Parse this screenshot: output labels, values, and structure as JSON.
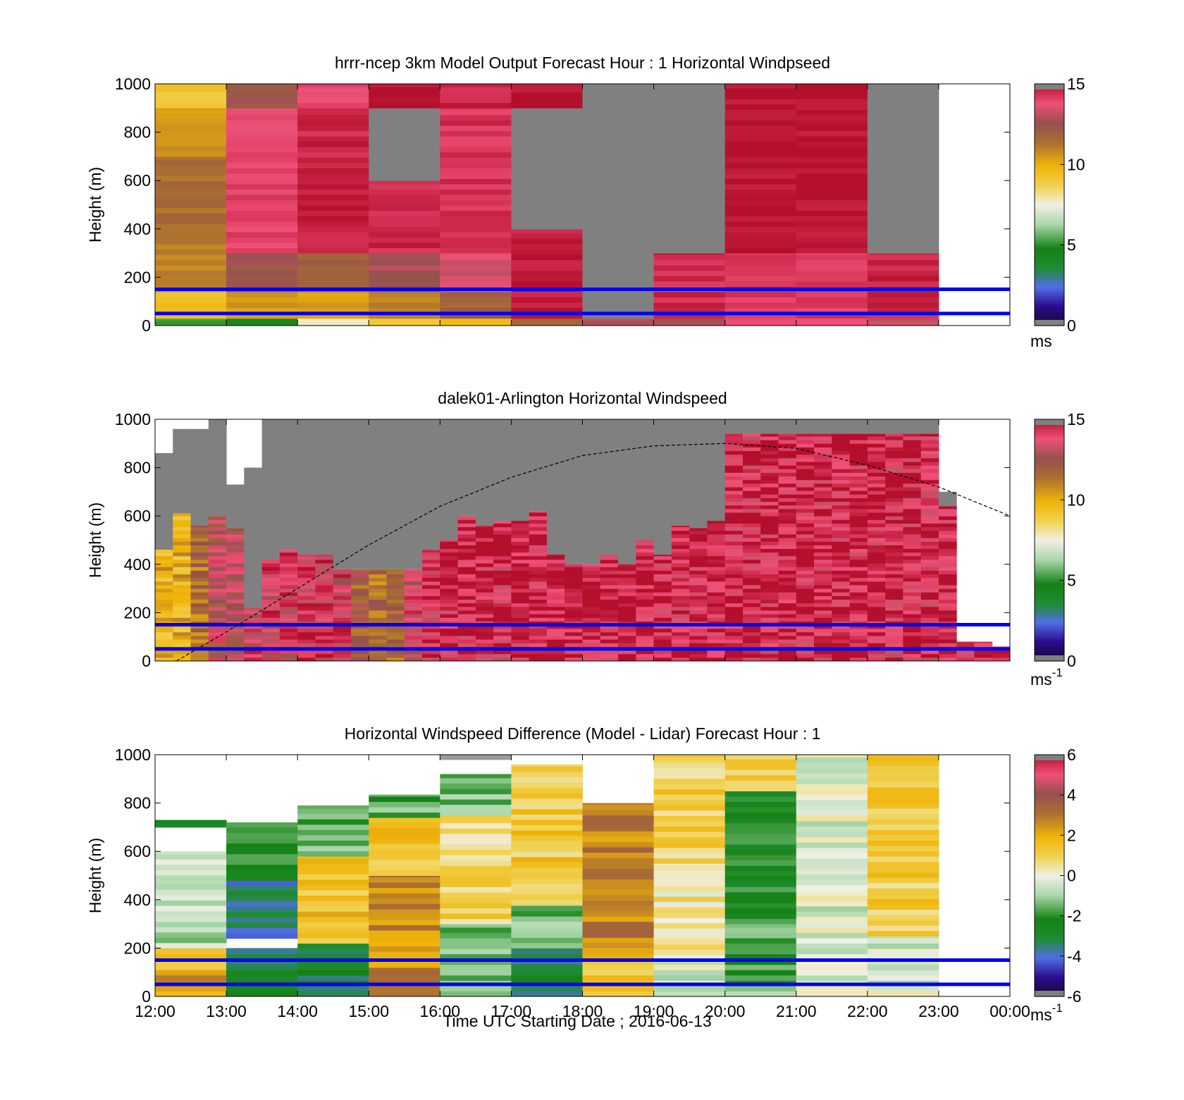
{
  "figure": {
    "xlabel": "Time UTC  Starting Date ; 2016-06-13",
    "x_tick_labels": [
      "12:00",
      "13:00",
      "14:00",
      "15:00",
      "16:00",
      "17:00",
      "18:00",
      "19:00",
      "20:00",
      "21:00",
      "22:00",
      "23:00",
      "00:00"
    ]
  },
  "chart_data": [
    {
      "type": "heatmap",
      "title": "hrrr-ncep 3km Model Output   Forecast Hour : 1 Horizontal Windpseed",
      "xlabel": "",
      "ylabel": "Height (m)",
      "x_range_hours": [
        12,
        24
      ],
      "ylim": [
        0,
        1000
      ],
      "y_ticks": [
        0,
        200,
        400,
        600,
        800,
        1000
      ],
      "colorbar": {
        "range": [
          0,
          15
        ],
        "ticks": [
          0,
          5,
          10,
          15
        ],
        "unit_label": "ms",
        "unit_sup": ""
      },
      "reference_lines_m": [
        50,
        150
      ],
      "line_color": "#0000ee",
      "missing_color": "#808080",
      "columns": [
        {
          "start_hour": 12,
          "cells": [
            {
              "y0": 0,
              "y1": 30,
              "v": 5.5
            },
            {
              "y0": 30,
              "y1": 140,
              "v": 9.5
            },
            {
              "y0": 140,
              "y1": 400,
              "v": 11
            },
            {
              "y0": 400,
              "y1": 700,
              "v": 11.5
            },
            {
              "y0": 700,
              "y1": 900,
              "v": 10.5
            },
            {
              "y0": 900,
              "y1": 1000,
              "v": 9.2
            }
          ]
        },
        {
          "start_hour": 13,
          "cells": [
            {
              "y0": 0,
              "y1": 30,
              "v": 4
            },
            {
              "y0": 30,
              "y1": 140,
              "v": 10.5
            },
            {
              "y0": 140,
              "y1": 300,
              "v": 12.5
            },
            {
              "y0": 300,
              "y1": 900,
              "v": 14
            },
            {
              "y0": 900,
              "y1": 1000,
              "v": 12.5
            }
          ]
        },
        {
          "start_hour": 14,
          "cells": [
            {
              "y0": 0,
              "y1": 30,
              "v": 8
            },
            {
              "y0": 30,
              "y1": 140,
              "v": 10.5
            },
            {
              "y0": 140,
              "y1": 300,
              "v": 12
            },
            {
              "y0": 300,
              "y1": 900,
              "v": 14.6
            },
            {
              "y0": 900,
              "y1": 1000,
              "v": 13.8
            }
          ]
        },
        {
          "start_hour": 15,
          "cells": [
            {
              "y0": 0,
              "y1": 30,
              "v": 9
            },
            {
              "y0": 30,
              "y1": 140,
              "v": 11
            },
            {
              "y0": 140,
              "y1": 300,
              "v": 12.8
            },
            {
              "y0": 300,
              "y1": 600,
              "v": 14.5
            },
            {
              "y0": 600,
              "y1": 900,
              "v": null
            },
            {
              "y0": 900,
              "y1": 1000,
              "v": 15
            }
          ]
        },
        {
          "start_hour": 16,
          "cells": [
            {
              "y0": 0,
              "y1": 30,
              "v": 9.5
            },
            {
              "y0": 30,
              "y1": 140,
              "v": 11.8
            },
            {
              "y0": 140,
              "y1": 300,
              "v": 13.5
            },
            {
              "y0": 300,
              "y1": 900,
              "v": 14.3
            },
            {
              "y0": 900,
              "y1": 1000,
              "v": 14.6
            }
          ]
        },
        {
          "start_hour": 17,
          "cells": [
            {
              "y0": 0,
              "y1": 30,
              "v": 12
            },
            {
              "y0": 30,
              "y1": 400,
              "v": 14.8
            },
            {
              "y0": 400,
              "y1": 900,
              "v": null
            },
            {
              "y0": 900,
              "y1": 1000,
              "v": 15
            }
          ]
        },
        {
          "start_hour": 18,
          "cells": [
            {
              "y0": 0,
              "y1": 30,
              "v": 13
            },
            {
              "y0": 30,
              "y1": 1000,
              "v": null
            }
          ]
        },
        {
          "start_hour": 19,
          "cells": [
            {
              "y0": 0,
              "y1": 30,
              "v": 13
            },
            {
              "y0": 30,
              "y1": 300,
              "v": 14.5
            },
            {
              "y0": 300,
              "y1": 1000,
              "v": null
            }
          ]
        },
        {
          "start_hour": 20,
          "cells": [
            {
              "y0": 0,
              "y1": 30,
              "v": 13.5
            },
            {
              "y0": 30,
              "y1": 300,
              "v": 14.2
            },
            {
              "y0": 300,
              "y1": 1000,
              "v": 15
            }
          ]
        },
        {
          "start_hour": 21,
          "cells": [
            {
              "y0": 0,
              "y1": 30,
              "v": 13.5
            },
            {
              "y0": 30,
              "y1": 300,
              "v": 14.2
            },
            {
              "y0": 300,
              "y1": 1000,
              "v": 15
            }
          ]
        },
        {
          "start_hour": 22,
          "cells": [
            {
              "y0": 0,
              "y1": 30,
              "v": 13
            },
            {
              "y0": 30,
              "y1": 300,
              "v": 14.6
            },
            {
              "y0": 300,
              "y1": 1000,
              "v": null
            }
          ]
        }
      ]
    },
    {
      "type": "heatmap",
      "title": "dalek01-Arlington  Horizontal Windspeed",
      "xlabel": "",
      "ylabel": "Height (m)",
      "x_range_hours": [
        12,
        24
      ],
      "ylim": [
        0,
        1000
      ],
      "y_ticks": [
        0,
        200,
        400,
        600,
        800,
        1000
      ],
      "colorbar": {
        "range": [
          0,
          15
        ],
        "ticks": [
          0,
          5,
          10,
          15
        ],
        "unit_label": "ms",
        "unit_sup": "-1"
      },
      "reference_lines_m": [
        50,
        150
      ],
      "line_color": "#0000ee",
      "missing_color": "#808080",
      "dashed_curve": {
        "hours": [
          12.3,
          13,
          14,
          15,
          16,
          17,
          18,
          19,
          20,
          21,
          22,
          23,
          24
        ],
        "heights_m": [
          0,
          120,
          300,
          480,
          640,
          760,
          850,
          890,
          900,
          880,
          810,
          720,
          600
        ]
      },
      "columns": [
        {
          "start_hour": 12.0,
          "top_m": 860,
          "v": 10,
          "gap_above_m": 400
        },
        {
          "start_hour": 12.25,
          "top_m": 960,
          "v": 10,
          "gap_above_m": 350
        },
        {
          "start_hour": 12.5,
          "top_m": 960,
          "v": 11.5,
          "gap_above_m": 400
        },
        {
          "start_hour": 12.75,
          "top_m": 1000,
          "v": 13,
          "gap_above_m": 400
        },
        {
          "start_hour": 13.0,
          "top_m": 730,
          "v": 13,
          "gap_above_m": 180
        },
        {
          "start_hour": 13.25,
          "top_m": 800,
          "v": 13.5,
          "gap_above_m": 580
        },
        {
          "start_hour": 13.5,
          "top_m": 1000,
          "v": 13.8,
          "gap_above_m": 580
        },
        {
          "start_hour": 13.75,
          "top_m": 1000,
          "v": 14,
          "gap_above_m": 540
        },
        {
          "start_hour": 14.0,
          "top_m": 1000,
          "v": 14.2,
          "gap_above_m": 560
        },
        {
          "start_hour": 14.25,
          "top_m": 1000,
          "v": 14.2,
          "gap_above_m": 560
        },
        {
          "start_hour": 14.5,
          "top_m": 1000,
          "v": 13.8,
          "gap_above_m": 620
        },
        {
          "start_hour": 14.75,
          "top_m": 1000,
          "v": 12,
          "gap_above_m": 620
        },
        {
          "start_hour": 15.0,
          "top_m": 1000,
          "v": 11.5,
          "gap_above_m": 620
        },
        {
          "start_hour": 15.25,
          "top_m": 1000,
          "v": 11.8,
          "gap_above_m": 620
        },
        {
          "start_hour": 15.5,
          "top_m": 1000,
          "v": 13.5,
          "gap_above_m": 620
        },
        {
          "start_hour": 15.75,
          "top_m": 1000,
          "v": 14.2,
          "gap_above_m": 540
        },
        {
          "start_hour": 16.0,
          "top_m": 1000,
          "v": 14.5,
          "gap_above_m": 500
        },
        {
          "start_hour": 16.25,
          "top_m": 1000,
          "v": 14.5,
          "gap_above_m": 400
        },
        {
          "start_hour": 16.5,
          "top_m": 1000,
          "v": 14.5,
          "gap_above_m": 440
        },
        {
          "start_hour": 16.75,
          "top_m": 1000,
          "v": 14.4,
          "gap_above_m": 420
        },
        {
          "start_hour": 17.0,
          "top_m": 1000,
          "v": 14.6,
          "gap_above_m": 420
        },
        {
          "start_hour": 17.25,
          "top_m": 1000,
          "v": 14.6,
          "gap_above_m": 380
        },
        {
          "start_hour": 17.5,
          "top_m": 1000,
          "v": 14.8,
          "gap_above_m": 560
        },
        {
          "start_hour": 17.75,
          "top_m": 1000,
          "v": 14.8,
          "gap_above_m": 600
        },
        {
          "start_hour": 18.0,
          "top_m": 1000,
          "v": 14.6,
          "gap_above_m": 600
        },
        {
          "start_hour": 18.25,
          "top_m": 1000,
          "v": 14.6,
          "gap_above_m": 560
        },
        {
          "start_hour": 18.5,
          "top_m": 1000,
          "v": 14.8,
          "gap_above_m": 600
        },
        {
          "start_hour": 18.75,
          "top_m": 1000,
          "v": 14.6,
          "gap_above_m": 500
        },
        {
          "start_hour": 19.0,
          "top_m": 1000,
          "v": 14.6,
          "gap_above_m": 560
        },
        {
          "start_hour": 19.25,
          "top_m": 1000,
          "v": 14.4,
          "gap_above_m": 440
        },
        {
          "start_hour": 19.5,
          "top_m": 1000,
          "v": 14.5,
          "gap_above_m": 450
        },
        {
          "start_hour": 19.75,
          "top_m": 1000,
          "v": 14.6,
          "gap_above_m": 420
        },
        {
          "start_hour": 20.0,
          "top_m": 1000,
          "v": 14.6,
          "gap_above_m": 60
        },
        {
          "start_hour": 20.25,
          "top_m": 1000,
          "v": 14.4,
          "gap_above_m": 60
        },
        {
          "start_hour": 20.5,
          "top_m": 1000,
          "v": 14.6,
          "gap_above_m": 60
        },
        {
          "start_hour": 20.75,
          "top_m": 1000,
          "v": 14.6,
          "gap_above_m": 60
        },
        {
          "start_hour": 21.0,
          "top_m": 1000,
          "v": 14.6,
          "gap_above_m": 60
        },
        {
          "start_hour": 21.25,
          "top_m": 1000,
          "v": 14.4,
          "gap_above_m": 60
        },
        {
          "start_hour": 21.5,
          "top_m": 1000,
          "v": 14.6,
          "gap_above_m": 60
        },
        {
          "start_hour": 21.75,
          "top_m": 1000,
          "v": 14.5,
          "gap_above_m": 60
        },
        {
          "start_hour": 22.0,
          "top_m": 1000,
          "v": 14.6,
          "gap_above_m": 60
        },
        {
          "start_hour": 22.25,
          "top_m": 1000,
          "v": 14.5,
          "gap_above_m": 60
        },
        {
          "start_hour": 22.5,
          "top_m": 1000,
          "v": 14.4,
          "gap_above_m": 60
        },
        {
          "start_hour": 22.75,
          "top_m": 1000,
          "v": 14.4,
          "gap_above_m": 60
        },
        {
          "start_hour": 23.0,
          "top_m": 700,
          "v": 14.6,
          "gap_above_m": 60
        },
        {
          "start_hour": 23.25,
          "top_m": 80,
          "v": 14.6,
          "gap_above_m": 0
        },
        {
          "start_hour": 23.5,
          "top_m": 80,
          "v": 14.6,
          "gap_above_m": 0
        },
        {
          "start_hour": 23.75,
          "top_m": 60,
          "v": 14.6,
          "gap_above_m": 0
        }
      ]
    },
    {
      "type": "heatmap",
      "title": "Horizontal Windspeed Difference (Model - Lidar) Forecast Hour : 1",
      "xlabel": "Time UTC  Starting Date ; 2016-06-13",
      "ylabel": "Height (m)",
      "x_range_hours": [
        12,
        24
      ],
      "ylim": [
        0,
        1000
      ],
      "y_ticks": [
        0,
        200,
        400,
        600,
        800,
        1000
      ],
      "colorbar": {
        "range": [
          -6,
          6
        ],
        "ticks": [
          -6,
          -4,
          -2,
          0,
          2,
          4,
          6
        ],
        "unit_label": "ms",
        "unit_sup": "-1"
      },
      "reference_lines_m": [
        50,
        150
      ],
      "line_color": "#0000ee",
      "missing_color": "#9a9a9a",
      "columns": [
        {
          "start_hour": 12,
          "cells": [
            {
              "y0": 0,
              "y1": 110,
              "v": 2.5
            },
            {
              "y0": 110,
              "y1": 200,
              "v": 1.5
            },
            {
              "y0": 200,
              "y1": 480,
              "v": -0.7
            },
            {
              "y0": 480,
              "y1": 600,
              "v": -0.5
            },
            {
              "y0": 700,
              "y1": 730,
              "v": -3
            }
          ]
        },
        {
          "start_hour": 13,
          "cells": [
            {
              "y0": 0,
              "y1": 200,
              "v": -3
            },
            {
              "y0": 240,
              "y1": 480,
              "v": -3.5
            },
            {
              "y0": 480,
              "y1": 720,
              "v": -2
            }
          ]
        },
        {
          "start_hour": 14,
          "cells": [
            {
              "y0": 0,
              "y1": 220,
              "v": -2.8
            },
            {
              "y0": 220,
              "y1": 580,
              "v": 1.5
            },
            {
              "y0": 580,
              "y1": 790,
              "v": -1.5
            }
          ]
        },
        {
          "start_hour": 15,
          "cells": [
            {
              "y0": 0,
              "y1": 120,
              "v": 2.8
            },
            {
              "y0": 120,
              "y1": 500,
              "v": 2.6
            },
            {
              "y0": 500,
              "y1": 740,
              "v": 1.6
            },
            {
              "y0": 740,
              "y1": 835,
              "v": -1.5
            }
          ]
        },
        {
          "start_hour": 16,
          "cells": [
            {
              "y0": 0,
              "y1": 300,
              "v": -1.5
            },
            {
              "y0": 300,
              "y1": 750,
              "v": 0.9
            },
            {
              "y0": 750,
              "y1": 920,
              "v": -1.2
            },
            {
              "y0": 980,
              "y1": 1000,
              "v": null
            }
          ]
        },
        {
          "start_hour": 17,
          "cells": [
            {
              "y0": 0,
              "y1": 200,
              "v": -3
            },
            {
              "y0": 200,
              "y1": 380,
              "v": -1.5
            },
            {
              "y0": 380,
              "y1": 960,
              "v": 1.3
            }
          ]
        },
        {
          "start_hour": 18,
          "cells": [
            {
              "y0": 0,
              "y1": 200,
              "v": 1.5
            },
            {
              "y0": 200,
              "y1": 800,
              "v": 2.8
            }
          ]
        },
        {
          "start_hour": 19,
          "cells": [
            {
              "y0": 0,
              "y1": 150,
              "v": -0.4
            },
            {
              "y0": 150,
              "y1": 550,
              "v": 0.5
            },
            {
              "y0": 550,
              "y1": 1000,
              "v": 1
            }
          ]
        },
        {
          "start_hour": 20,
          "cells": [
            {
              "y0": 0,
              "y1": 300,
              "v": -1.5
            },
            {
              "y0": 300,
              "y1": 850,
              "v": -2.4
            },
            {
              "y0": 850,
              "y1": 1000,
              "v": 1.3
            }
          ]
        },
        {
          "start_hour": 21,
          "cells": [
            {
              "y0": 0,
              "y1": 1000,
              "v": -0.3
            }
          ]
        },
        {
          "start_hour": 22,
          "cells": [
            {
              "y0": 0,
              "y1": 250,
              "v": -0.3
            },
            {
              "y0": 250,
              "y1": 1000,
              "v": 1.2
            }
          ]
        }
      ]
    }
  ]
}
